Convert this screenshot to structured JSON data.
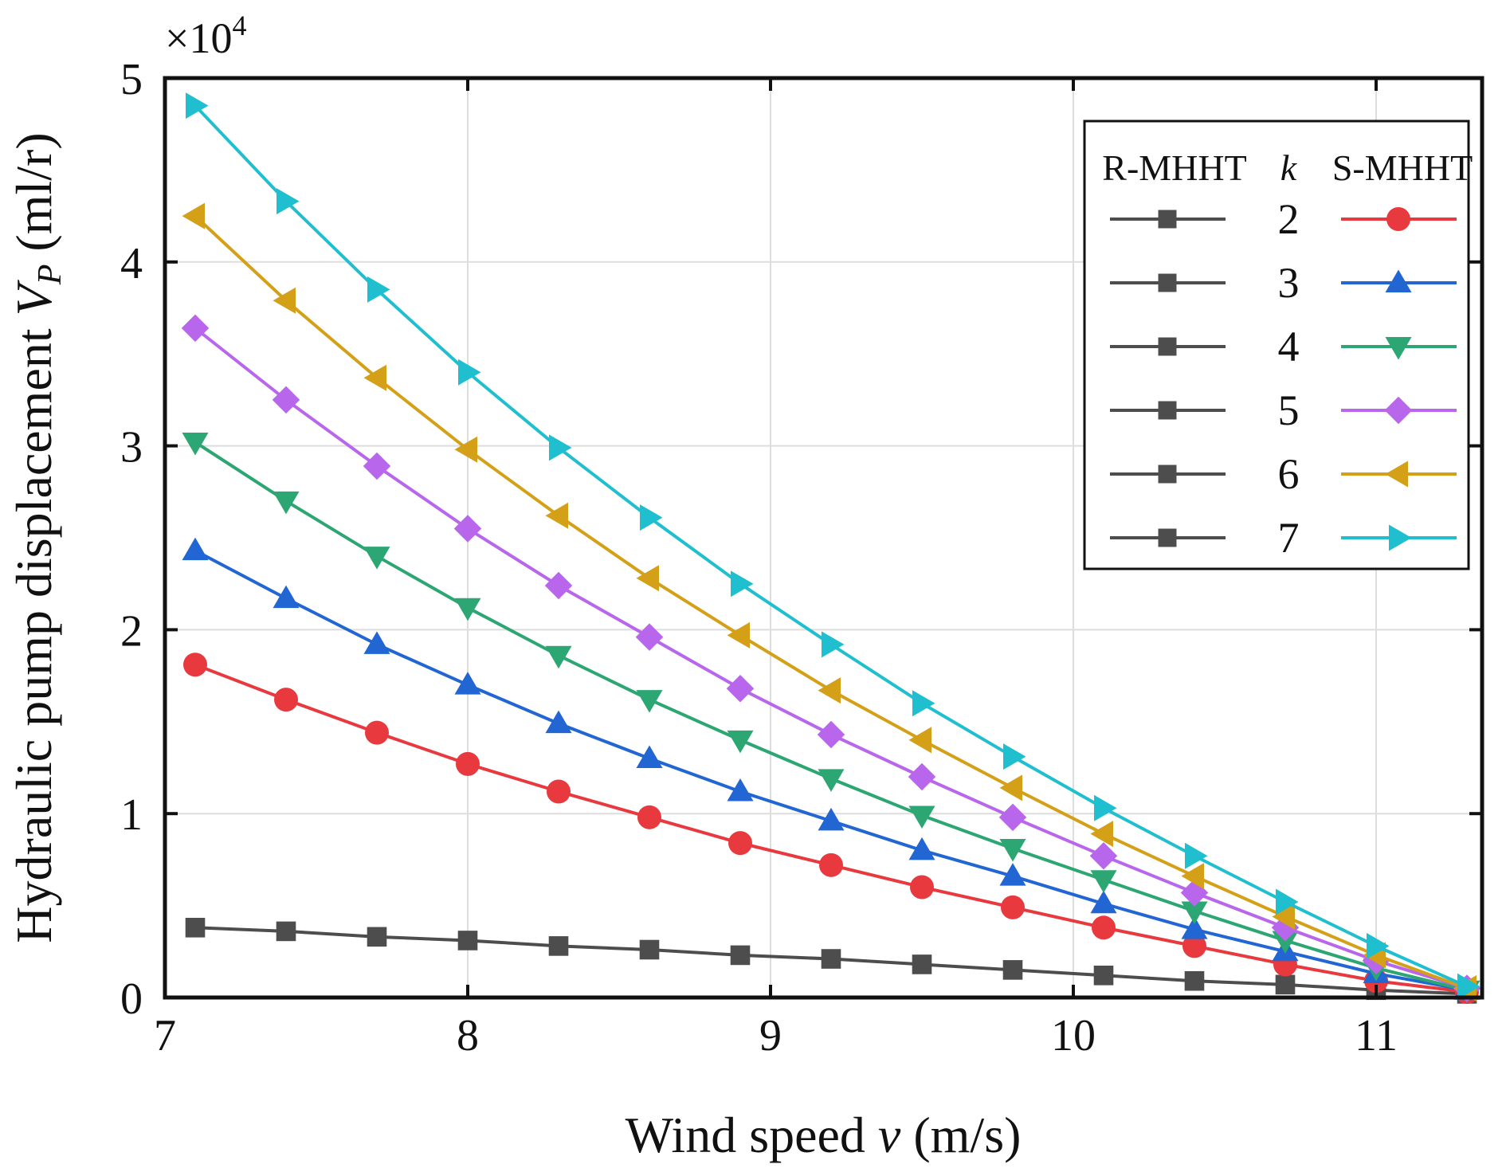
{
  "chart_data": {
    "type": "line",
    "xlabel": "Wind speed v (m/s)",
    "xlabel_prefix": "Wind speed ",
    "xlabel_var": "v",
    "xlabel_suffix": " (m/s)",
    "ylabel": "Hydraulic pump displacement V_P (ml/r)",
    "ylabel_prefix": "Hydraulic pump displacement ",
    "ylabel_var": "V",
    "ylabel_sub": "P",
    "ylabel_suffix": " (ml/r)",
    "y_multiplier_base": "×10",
    "y_multiplier_exp": "4",
    "xlim": [
      7,
      11.35
    ],
    "ylim": [
      0,
      5
    ],
    "xticks": [
      7,
      8,
      9,
      10,
      11
    ],
    "yticks": [
      0,
      1,
      2,
      3,
      4,
      5
    ],
    "grid": true,
    "legend": {
      "placement": "top-right",
      "header_left": "R-MHHT",
      "header_mid": "k",
      "header_right": "S-MHHT",
      "k_values": [
        "2",
        "3",
        "4",
        "5",
        "6",
        "7"
      ]
    },
    "x": [
      7.1,
      7.4,
      7.7,
      8.0,
      8.3,
      8.6,
      8.9,
      9.2,
      9.5,
      9.8,
      10.1,
      10.4,
      10.7,
      11.0,
      11.3
    ],
    "series": [
      {
        "name": "R-MHHT",
        "color": "#4d4d4d",
        "marker": "square",
        "values": [
          0.38,
          0.36,
          0.33,
          0.31,
          0.28,
          0.26,
          0.23,
          0.21,
          0.18,
          0.15,
          0.12,
          0.09,
          0.07,
          0.04,
          0.02
        ]
      },
      {
        "name": "2",
        "color": "#e8393f",
        "marker": "circle",
        "values": [
          1.81,
          1.62,
          1.44,
          1.27,
          1.12,
          0.98,
          0.84,
          0.72,
          0.6,
          0.49,
          0.38,
          0.28,
          0.18,
          0.09,
          0.03
        ]
      },
      {
        "name": "3",
        "color": "#2266d4",
        "marker": "triangle-up",
        "values": [
          2.43,
          2.17,
          1.92,
          1.7,
          1.49,
          1.3,
          1.12,
          0.96,
          0.8,
          0.66,
          0.51,
          0.37,
          0.25,
          0.13,
          0.04
        ]
      },
      {
        "name": "4",
        "color": "#2ca672",
        "marker": "triangle-down",
        "values": [
          3.02,
          2.7,
          2.4,
          2.12,
          1.86,
          1.62,
          1.4,
          1.19,
          0.99,
          0.81,
          0.64,
          0.47,
          0.31,
          0.16,
          0.04
        ]
      },
      {
        "name": "5",
        "color": "#b866ec",
        "marker": "diamond",
        "values": [
          3.64,
          3.25,
          2.89,
          2.55,
          2.24,
          1.96,
          1.68,
          1.43,
          1.2,
          0.98,
          0.77,
          0.57,
          0.38,
          0.2,
          0.05
        ]
      },
      {
        "name": "6",
        "color": "#d4a017",
        "marker": "triangle-left",
        "values": [
          4.25,
          3.79,
          3.37,
          2.98,
          2.62,
          2.28,
          1.97,
          1.67,
          1.4,
          1.14,
          0.89,
          0.66,
          0.44,
          0.23,
          0.05
        ]
      },
      {
        "name": "7",
        "color": "#1fbfcf",
        "marker": "triangle-right",
        "values": [
          4.85,
          4.33,
          3.85,
          3.4,
          2.99,
          2.61,
          2.25,
          1.92,
          1.6,
          1.31,
          1.03,
          0.77,
          0.52,
          0.28,
          0.06
        ]
      }
    ]
  }
}
